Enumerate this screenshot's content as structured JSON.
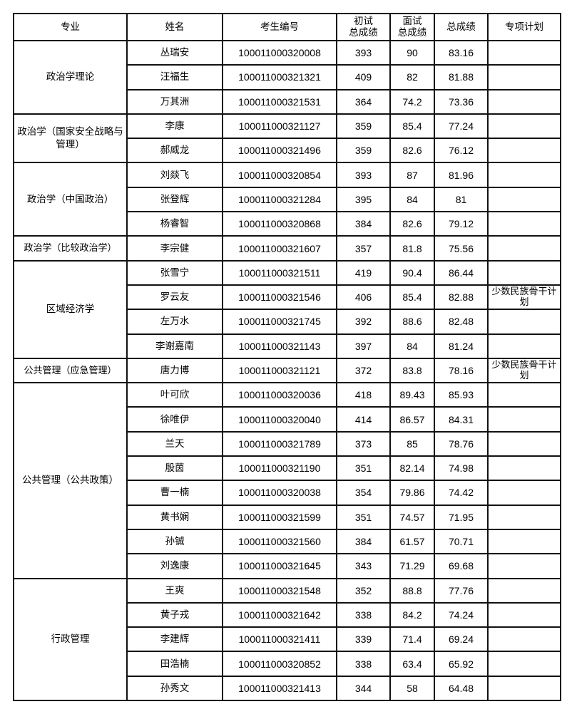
{
  "table": {
    "headers": [
      "专业",
      "姓名",
      "考生编号",
      "初试\n总成绩",
      "面试\n总成绩",
      "总成绩",
      "专项计划"
    ],
    "groups": [
      {
        "major": "政治学理论",
        "rows": [
          {
            "name": "丛瑞安",
            "id": "100011000320008",
            "initial": "393",
            "interview": "90",
            "total": "83.16",
            "plan": ""
          },
          {
            "name": "汪福生",
            "id": "100011000321321",
            "initial": "409",
            "interview": "82",
            "total": "81.88",
            "plan": ""
          },
          {
            "name": "万其洲",
            "id": "100011000321531",
            "initial": "364",
            "interview": "74.2",
            "total": "73.36",
            "plan": ""
          }
        ]
      },
      {
        "major": "政治学（国家安全战略与管理）",
        "rows": [
          {
            "name": "李康",
            "id": "100011000321127",
            "initial": "359",
            "interview": "85.4",
            "total": "77.24",
            "plan": ""
          },
          {
            "name": "郝威龙",
            "id": "100011000321496",
            "initial": "359",
            "interview": "82.6",
            "total": "76.12",
            "plan": ""
          }
        ]
      },
      {
        "major": "政治学（中国政治）",
        "rows": [
          {
            "name": "刘燚飞",
            "id": "100011000320854",
            "initial": "393",
            "interview": "87",
            "total": "81.96",
            "plan": ""
          },
          {
            "name": "张登辉",
            "id": "100011000321284",
            "initial": "395",
            "interview": "84",
            "total": "81",
            "plan": ""
          },
          {
            "name": "杨睿智",
            "id": "100011000320868",
            "initial": "384",
            "interview": "82.6",
            "total": "79.12",
            "plan": ""
          }
        ]
      },
      {
        "major": "政治学（比较政治学）",
        "rows": [
          {
            "name": "李宗健",
            "id": "100011000321607",
            "initial": "357",
            "interview": "81.8",
            "total": "75.56",
            "plan": ""
          }
        ]
      },
      {
        "major": "区域经济学",
        "rows": [
          {
            "name": "张雪宁",
            "id": "100011000321511",
            "initial": "419",
            "interview": "90.4",
            "total": "86.44",
            "plan": ""
          },
          {
            "name": "罗云友",
            "id": "100011000321546",
            "initial": "406",
            "interview": "85.4",
            "total": "82.88",
            "plan": "少数民族骨干计划"
          },
          {
            "name": "左万水",
            "id": "100011000321745",
            "initial": "392",
            "interview": "88.6",
            "total": "82.48",
            "plan": ""
          },
          {
            "name": "李谢嘉南",
            "id": "100011000321143",
            "initial": "397",
            "interview": "84",
            "total": "81.24",
            "plan": ""
          }
        ]
      },
      {
        "major": "公共管理（应急管理）",
        "rows": [
          {
            "name": "唐力博",
            "id": "100011000321121",
            "initial": "372",
            "interview": "83.8",
            "total": "78.16",
            "plan": "少数民族骨干计划"
          }
        ]
      },
      {
        "major": "公共管理（公共政策）",
        "rows": [
          {
            "name": "叶可欣",
            "id": "100011000320036",
            "initial": "418",
            "interview": "89.43",
            "total": "85.93",
            "plan": ""
          },
          {
            "name": "徐唯伊",
            "id": "100011000320040",
            "initial": "414",
            "interview": "86.57",
            "total": "84.31",
            "plan": ""
          },
          {
            "name": "兰天",
            "id": "100011000321789",
            "initial": "373",
            "interview": "85",
            "total": "78.76",
            "plan": ""
          },
          {
            "name": "殷茵",
            "id": "100011000321190",
            "initial": "351",
            "interview": "82.14",
            "total": "74.98",
            "plan": ""
          },
          {
            "name": "曹一楠",
            "id": "100011000320038",
            "initial": "354",
            "interview": "79.86",
            "total": "74.42",
            "plan": ""
          },
          {
            "name": "黄书娴",
            "id": "100011000321599",
            "initial": "351",
            "interview": "74.57",
            "total": "71.95",
            "plan": ""
          },
          {
            "name": "孙铖",
            "id": "100011000321560",
            "initial": "384",
            "interview": "61.57",
            "total": "70.71",
            "plan": ""
          },
          {
            "name": "刘逸康",
            "id": "100011000321645",
            "initial": "343",
            "interview": "71.29",
            "total": "69.68",
            "plan": ""
          }
        ]
      },
      {
        "major": "行政管理",
        "rows": [
          {
            "name": "王爽",
            "id": "100011000321548",
            "initial": "352",
            "interview": "88.8",
            "total": "77.76",
            "plan": ""
          },
          {
            "name": "黄子戎",
            "id": "100011000321642",
            "initial": "338",
            "interview": "84.2",
            "total": "74.24",
            "plan": ""
          },
          {
            "name": "李建辉",
            "id": "100011000321411",
            "initial": "339",
            "interview": "71.4",
            "total": "69.24",
            "plan": ""
          },
          {
            "name": "田浩楠",
            "id": "100011000320852",
            "initial": "338",
            "interview": "63.4",
            "total": "65.92",
            "plan": ""
          },
          {
            "name": "孙秀文",
            "id": "100011000321413",
            "initial": "344",
            "interview": "58",
            "total": "64.48",
            "plan": ""
          }
        ]
      }
    ]
  }
}
